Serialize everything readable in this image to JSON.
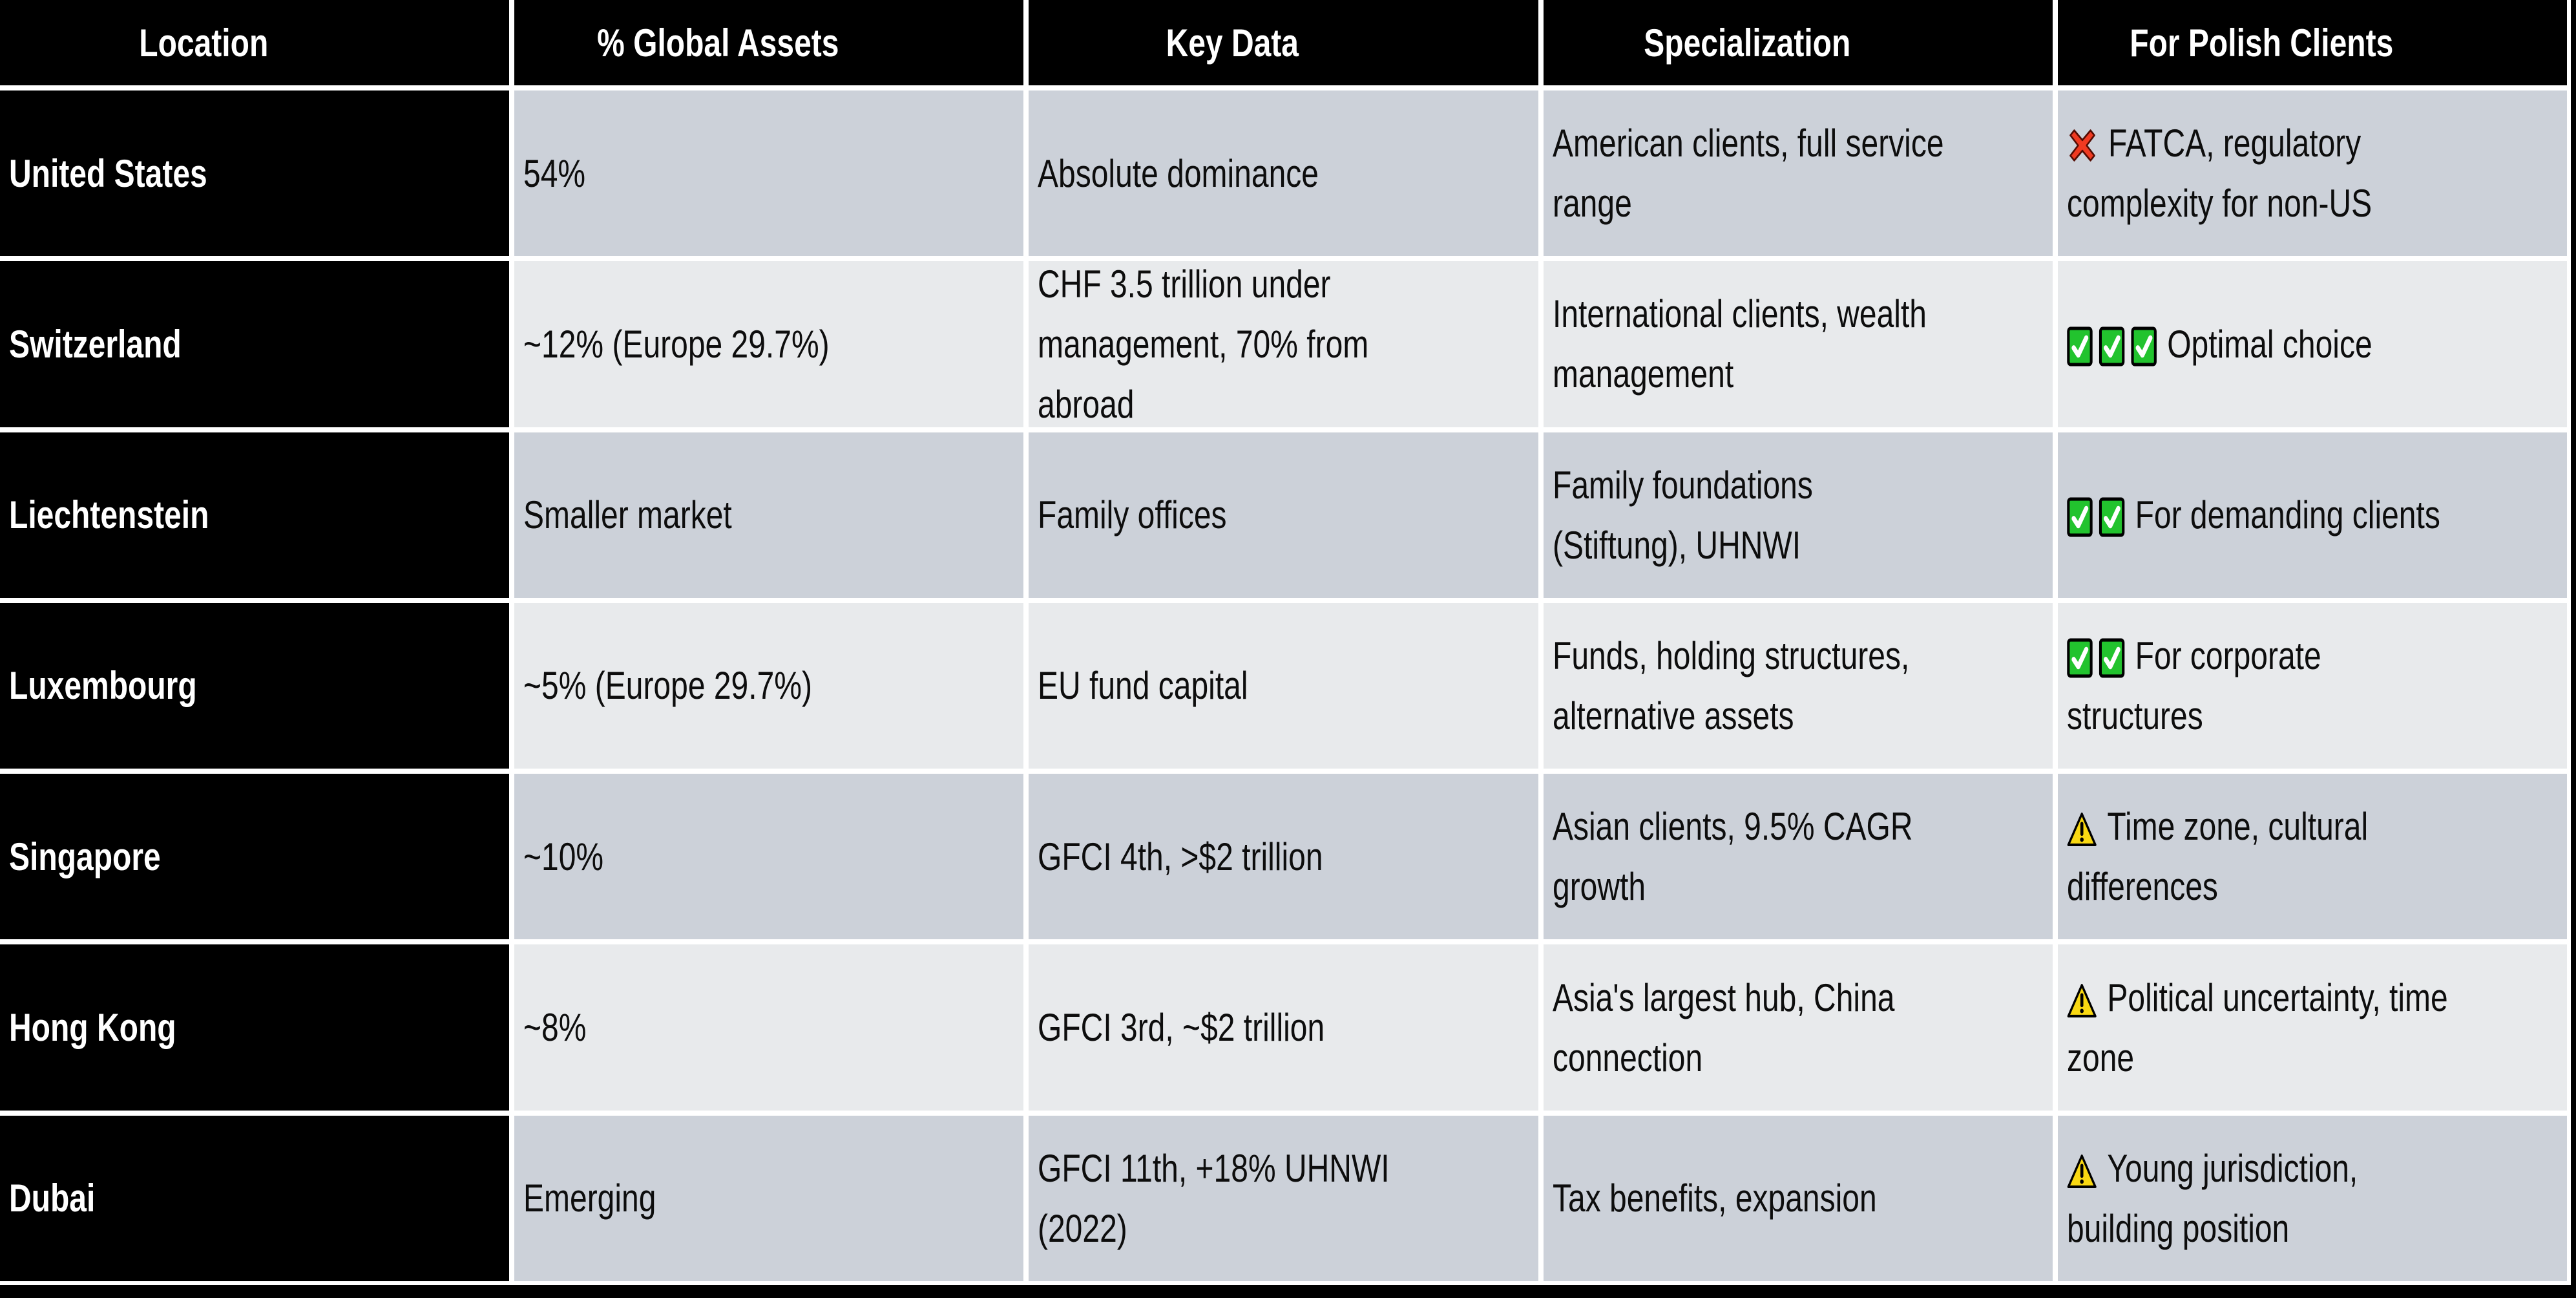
{
  "table": {
    "columns": [
      "Location",
      "% Global Assets",
      "Key Data",
      "Specialization",
      "For Polish Clients"
    ],
    "rows": [
      {
        "location": "United States",
        "global_assets": "54%",
        "key_data": "Absolute dominance",
        "specialization": "American clients, full service range",
        "polish_clients": {
          "icons": [
            "cross-mark"
          ],
          "text": "FATCA, regulatory complexity for non-US"
        }
      },
      {
        "location": "Switzerland",
        "global_assets": "~12% (Europe 29.7%)",
        "key_data": "CHF 3.5 trillion under management, 70% from abroad",
        "specialization": "International clients, wealth management",
        "polish_clients": {
          "icons": [
            "check-mark",
            "check-mark",
            "check-mark"
          ],
          "text": "Optimal choice"
        }
      },
      {
        "location": "Liechtenstein",
        "global_assets": "Smaller market",
        "key_data": "Family offices",
        "specialization": "Family foundations (Stiftung), UHNWI",
        "polish_clients": {
          "icons": [
            "check-mark",
            "check-mark"
          ],
          "text": "For demanding clients"
        }
      },
      {
        "location": "Luxembourg",
        "global_assets": "~5% (Europe 29.7%)",
        "key_data": "EU fund capital",
        "specialization": "Funds, holding structures, alternative assets",
        "polish_clients": {
          "icons": [
            "check-mark",
            "check-mark"
          ],
          "text": "For corporate structures"
        }
      },
      {
        "location": "Singapore",
        "global_assets": "~10%",
        "key_data": "GFCI 4th, >$2 trillion",
        "specialization": "Asian clients, 9.5% CAGR growth",
        "polish_clients": {
          "icons": [
            "warning"
          ],
          "text": "Time zone, cultural differences"
        }
      },
      {
        "location": "Hong Kong",
        "global_assets": "~8%",
        "key_data": "GFCI 3rd, ~$2 trillion",
        "specialization": "Asia's largest hub, China connection",
        "polish_clients": {
          "icons": [
            "warning"
          ],
          "text": "Political uncertainty, time zone"
        }
      },
      {
        "location": "Dubai",
        "global_assets": "Emerging",
        "key_data": "GFCI 11th, +18% UHNWI (2022)",
        "specialization": "Tax benefits, expansion",
        "polish_clients": {
          "icons": [
            "warning"
          ],
          "text": "Young jurisdiction, building position"
        }
      }
    ],
    "colors": {
      "header_bg": "#000000",
      "row_dark": "#ccd1d9",
      "row_light": "#e8eaec",
      "grid_line": "#ffffff",
      "check_green": "#22c32e",
      "cross_red": "#f03a21",
      "warning_yellow": "#f9d812"
    }
  }
}
